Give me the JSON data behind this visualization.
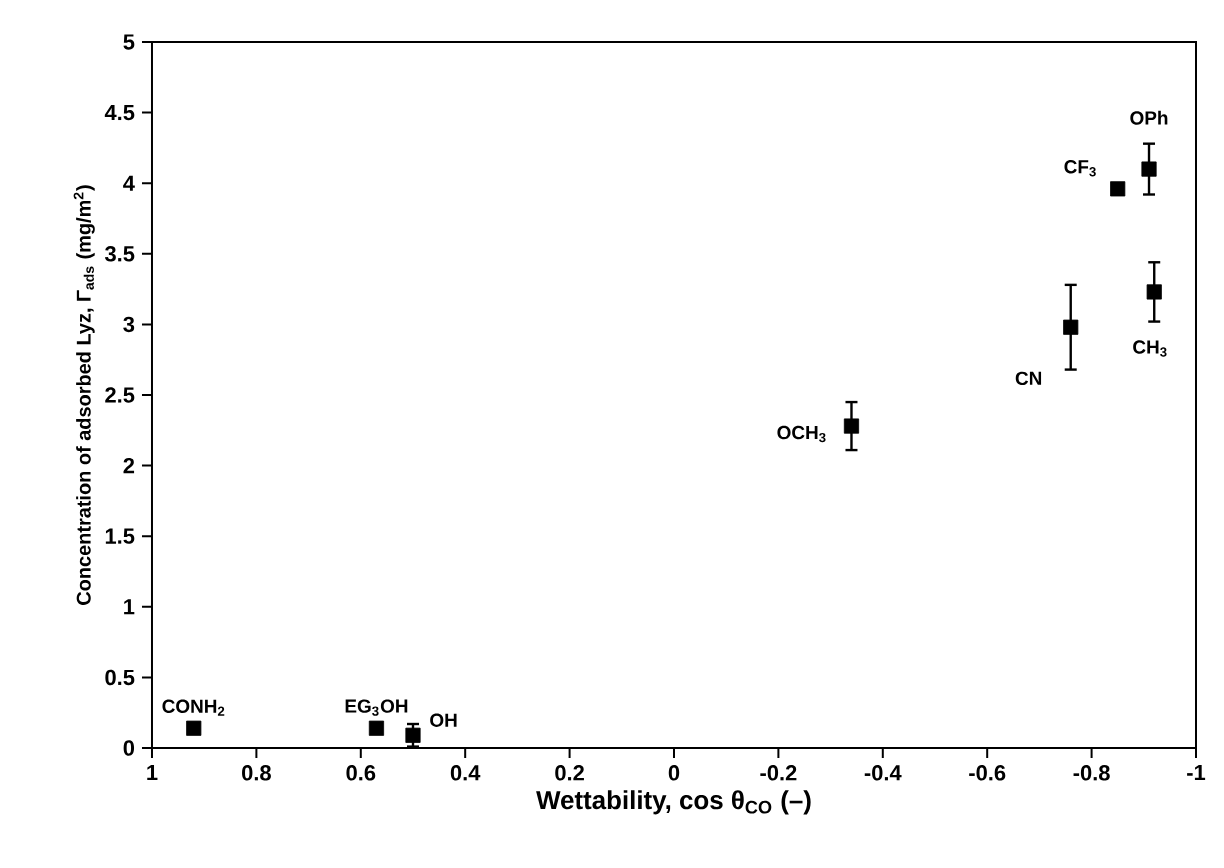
{
  "chart_data": {
    "type": "scatter",
    "xlabel": "Wettability, cos θ$_{CO}$ (–)",
    "ylabel": "Concentration of adsorbed Lyz, Γ$_{ads}$ (mg/m$^{2}$)",
    "xlim": [
      1,
      -1
    ],
    "xticks": [
      1,
      0.8,
      0.6,
      0.4,
      0.2,
      0,
      -0.2,
      -0.4,
      -0.6,
      -0.8,
      -1
    ],
    "ylim": [
      0,
      5
    ],
    "yticks": [
      0,
      0.5,
      1,
      1.5,
      2,
      2.5,
      3,
      3.5,
      4,
      4.5,
      5
    ],
    "marker": "square",
    "series": [
      {
        "color": "#000000",
        "x": [
          0.92,
          0.57,
          0.5,
          -0.34,
          -0.76,
          -0.85,
          -0.91,
          -0.92
        ],
        "values": [
          0.14,
          0.14,
          0.09,
          2.28,
          2.98,
          3.96,
          4.1,
          3.23
        ],
        "errors": [
          null,
          null,
          0.08,
          0.17,
          0.3,
          null,
          0.18,
          0.21
        ]
      }
    ],
    "annotations": [
      {
        "text": "CONH$_{2}$",
        "x": 0.92,
        "y": 0.14
      },
      {
        "text": "EG$_{3}$OH",
        "x": 0.57,
        "y": 0.14
      },
      {
        "text": "OH",
        "x": 0.5,
        "y": 0.09
      },
      {
        "text": "OCH$_{3}$",
        "x": -0.34,
        "y": 2.28
      },
      {
        "text": "CN",
        "x": -0.76,
        "y": 2.98
      },
      {
        "text": "CF$_{3}$",
        "x": -0.85,
        "y": 3.96
      },
      {
        "text": "OPh",
        "x": -0.91,
        "y": 4.1
      },
      {
        "text": "CH$_{3}$",
        "x": -0.92,
        "y": 3.23
      }
    ]
  }
}
